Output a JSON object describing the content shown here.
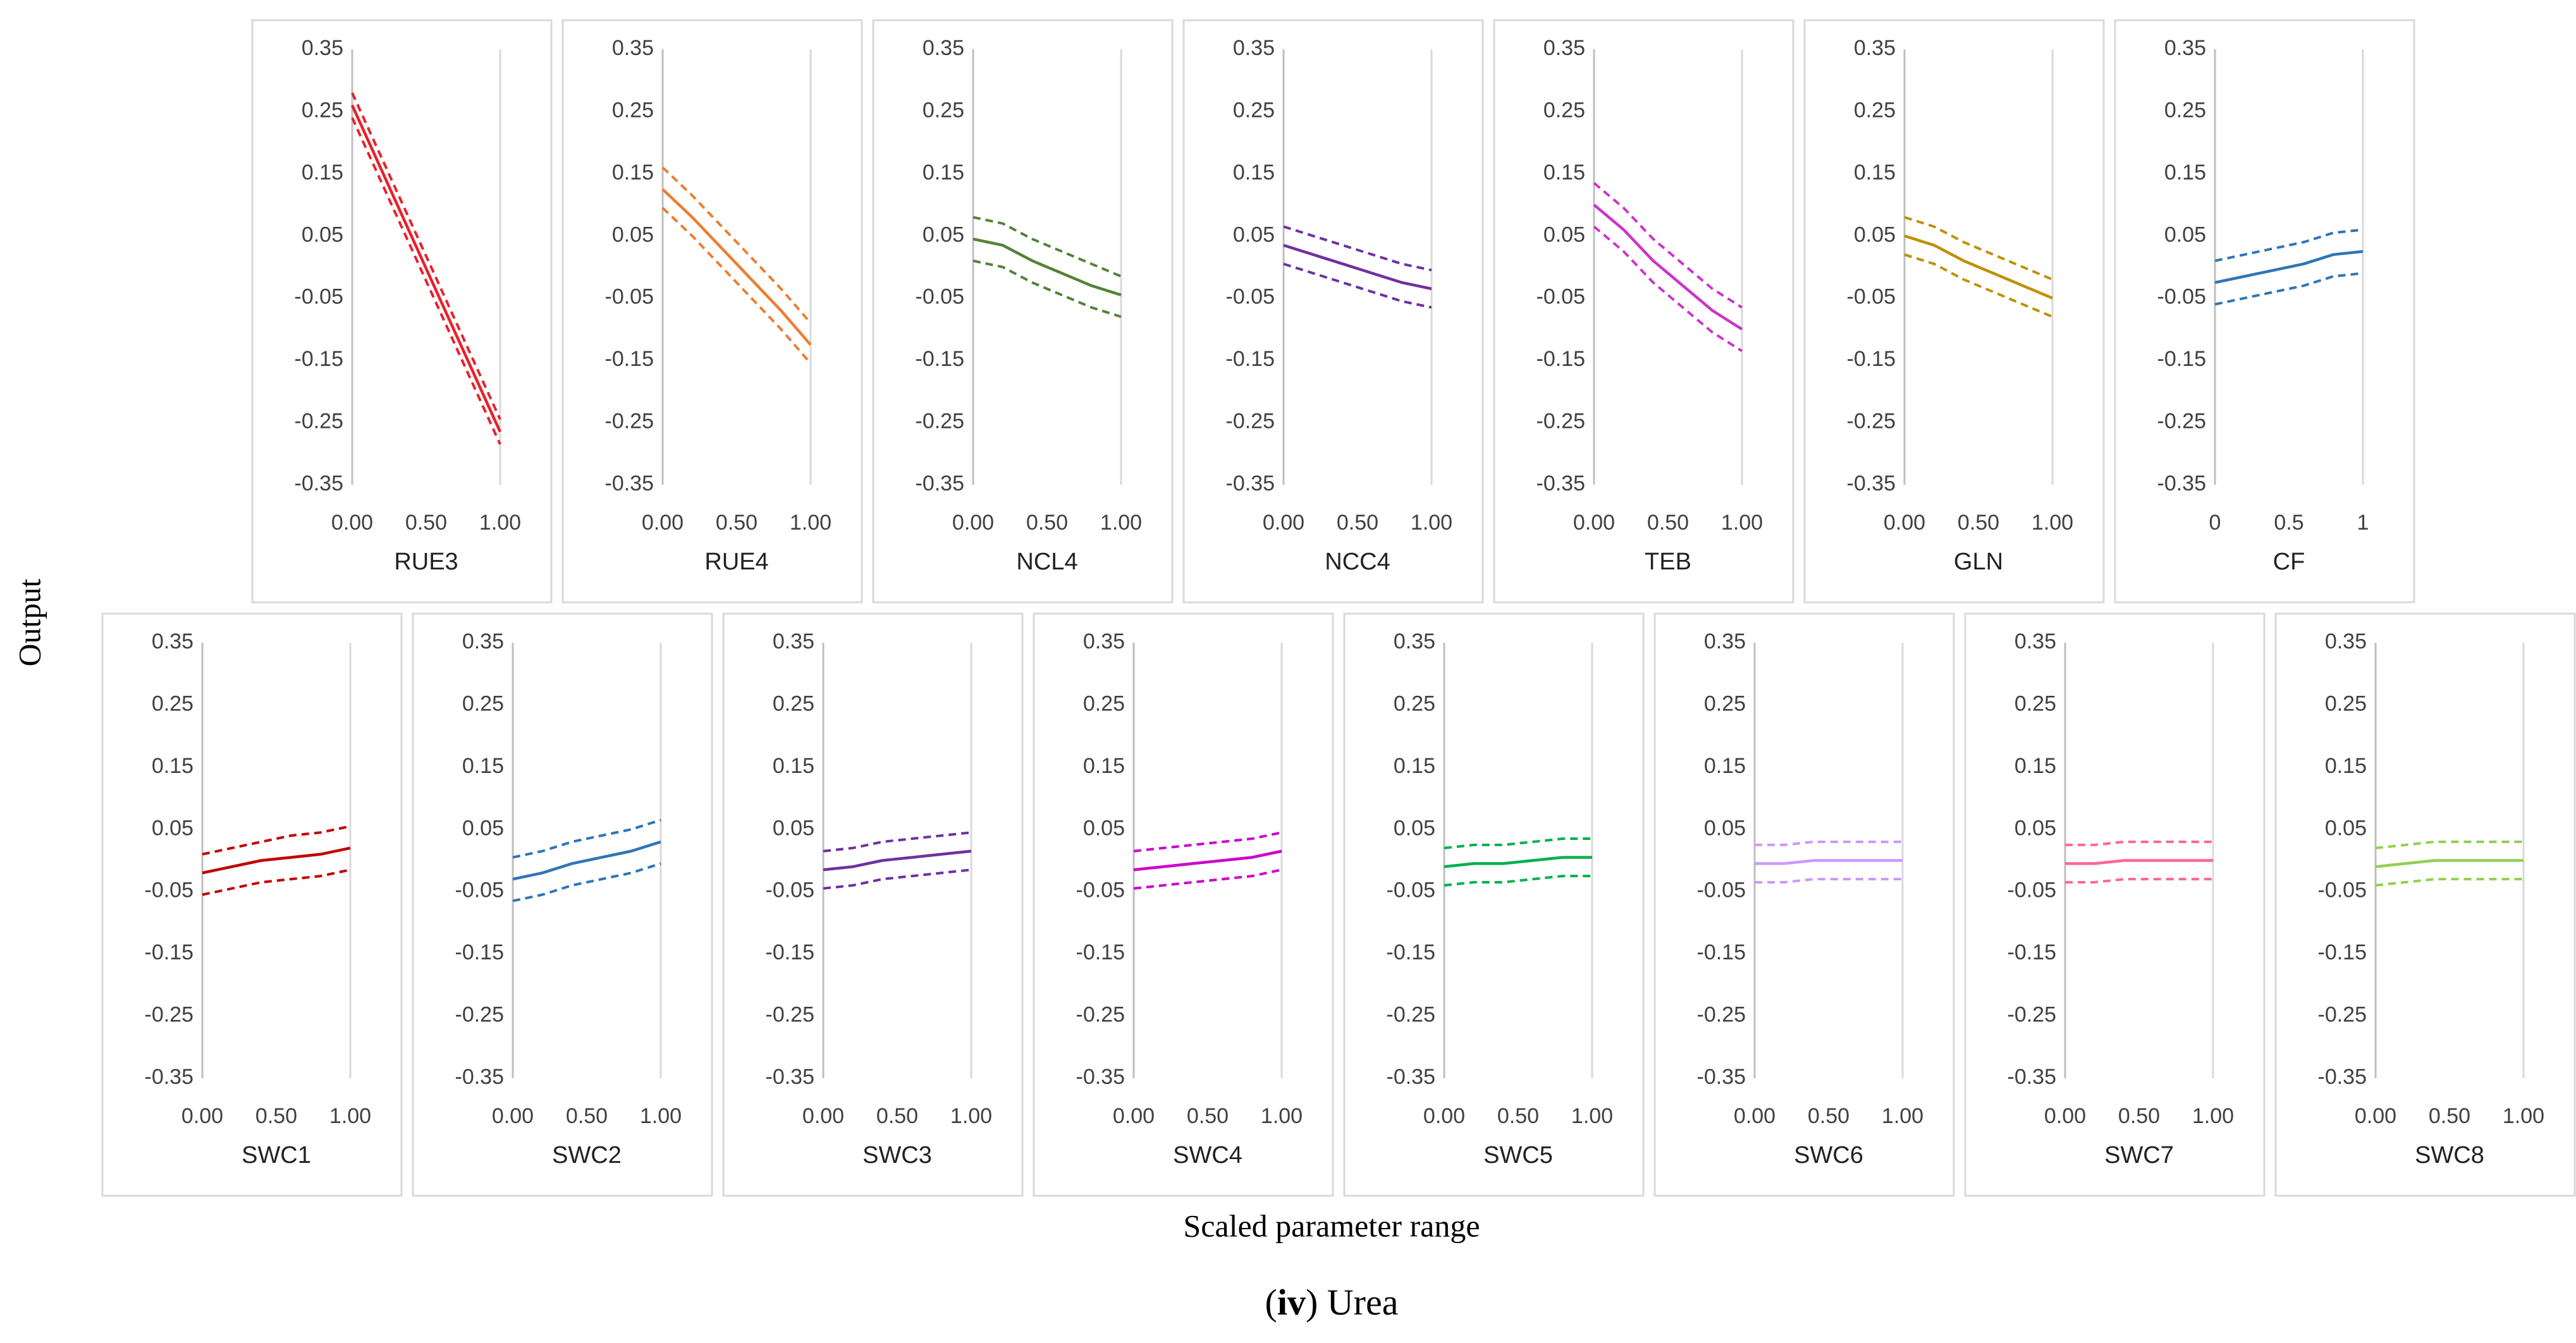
{
  "ylabel": "Output",
  "xlabel": "Scaled parameter range",
  "caption": [
    "(",
    "iv",
    ") Urea"
  ],
  "chart_data": [
    {
      "type": "line",
      "xlabel": "RUE3",
      "x": [
        0,
        0.2,
        0.4,
        0.6,
        0.8,
        1
      ],
      "xlim": [
        0,
        1
      ],
      "xticks": [
        {
          "value": 0,
          "label": "0.00"
        },
        {
          "value": 0.5,
          "label": "0.50"
        },
        {
          "value": 1,
          "label": "1.00"
        }
      ],
      "ylim": [
        -0.35,
        0.35
      ],
      "yticks": [
        0.35,
        0.25,
        0.15,
        0.05,
        -0.05,
        -0.15,
        -0.25,
        -0.35
      ],
      "series": [
        {
          "color": "#e8202a",
          "dashed": false,
          "values": [
            0.26,
            0.155,
            0.05,
            -0.055,
            -0.16,
            -0.265
          ]
        },
        {
          "color": "#e8202a",
          "dashed": true,
          "values": [
            0.28,
            0.175,
            0.07,
            -0.035,
            -0.14,
            -0.245
          ]
        },
        {
          "color": "#e8202a",
          "dashed": true,
          "values": [
            0.24,
            0.135,
            0.03,
            -0.075,
            -0.18,
            -0.285
          ]
        }
      ]
    },
    {
      "type": "line",
      "xlabel": "RUE4",
      "x": [
        0,
        0.2,
        0.4,
        0.6,
        0.8,
        1
      ],
      "xlim": [
        0,
        1
      ],
      "xticks": [
        {
          "value": 0,
          "label": "0.00"
        },
        {
          "value": 0.5,
          "label": "0.50"
        },
        {
          "value": 1,
          "label": "1.00"
        }
      ],
      "ylim": [
        -0.35,
        0.35
      ],
      "yticks": [
        0.35,
        0.25,
        0.15,
        0.05,
        -0.05,
        -0.15,
        -0.25,
        -0.35
      ],
      "series": [
        {
          "color": "#ed7d31",
          "dashed": false,
          "values": [
            0.125,
            0.08,
            0.03,
            -0.02,
            -0.07,
            -0.125
          ]
        },
        {
          "color": "#ed7d31",
          "dashed": true,
          "values": [
            0.16,
            0.115,
            0.065,
            0.015,
            -0.035,
            -0.09
          ]
        },
        {
          "color": "#ed7d31",
          "dashed": true,
          "values": [
            0.095,
            0.05,
            0,
            -0.05,
            -0.1,
            -0.155
          ]
        }
      ]
    },
    {
      "type": "line",
      "xlabel": "NCL4",
      "x": [
        0,
        0.2,
        0.4,
        0.6,
        0.8,
        1
      ],
      "xlim": [
        0,
        1
      ],
      "xticks": [
        {
          "value": 0,
          "label": "0.00"
        },
        {
          "value": 0.5,
          "label": "0.50"
        },
        {
          "value": 1,
          "label": "1.00"
        }
      ],
      "ylim": [
        -0.35,
        0.35
      ],
      "yticks": [
        0.35,
        0.25,
        0.15,
        0.05,
        -0.05,
        -0.15,
        -0.25,
        -0.35
      ],
      "series": [
        {
          "color": "#548235",
          "dashed": false,
          "values": [
            0.045,
            0.035,
            0.01,
            -0.01,
            -0.03,
            -0.045
          ]
        },
        {
          "color": "#548235",
          "dashed": true,
          "values": [
            0.08,
            0.07,
            0.045,
            0.025,
            0.005,
            -0.015
          ]
        },
        {
          "color": "#548235",
          "dashed": true,
          "values": [
            0.01,
            0,
            -0.025,
            -0.045,
            -0.065,
            -0.08
          ]
        }
      ]
    },
    {
      "type": "line",
      "xlabel": "NCC4",
      "x": [
        0,
        0.2,
        0.4,
        0.6,
        0.8,
        1
      ],
      "xlim": [
        0,
        1
      ],
      "xticks": [
        {
          "value": 0,
          "label": "0.00"
        },
        {
          "value": 0.5,
          "label": "0.50"
        },
        {
          "value": 1,
          "label": "1.00"
        }
      ],
      "ylim": [
        -0.35,
        0.35
      ],
      "yticks": [
        0.35,
        0.25,
        0.15,
        0.05,
        -0.05,
        -0.15,
        -0.25,
        -0.35
      ],
      "series": [
        {
          "color": "#7030a0",
          "dashed": false,
          "values": [
            0.035,
            0.02,
            0.005,
            -0.01,
            -0.025,
            -0.035
          ]
        },
        {
          "color": "#7030a0",
          "dashed": true,
          "values": [
            0.065,
            0.05,
            0.035,
            0.02,
            0.005,
            -0.005
          ]
        },
        {
          "color": "#7030a0",
          "dashed": true,
          "values": [
            0.005,
            -0.01,
            -0.025,
            -0.04,
            -0.055,
            -0.065
          ]
        }
      ]
    },
    {
      "type": "line",
      "xlabel": "TEB",
      "x": [
        0,
        0.2,
        0.4,
        0.6,
        0.8,
        1
      ],
      "xlim": [
        0,
        1
      ],
      "xticks": [
        {
          "value": 0,
          "label": "0.00"
        },
        {
          "value": 0.5,
          "label": "0.50"
        },
        {
          "value": 1,
          "label": "1.00"
        }
      ],
      "ylim": [
        -0.35,
        0.35
      ],
      "yticks": [
        0.35,
        0.25,
        0.15,
        0.05,
        -0.05,
        -0.15,
        -0.25,
        -0.35
      ],
      "series": [
        {
          "color": "#cc33cc",
          "dashed": false,
          "values": [
            0.1,
            0.06,
            0.01,
            -0.03,
            -0.07,
            -0.1
          ]
        },
        {
          "color": "#cc33cc",
          "dashed": true,
          "values": [
            0.135,
            0.095,
            0.045,
            0.005,
            -0.035,
            -0.065
          ]
        },
        {
          "color": "#cc33cc",
          "dashed": true,
          "values": [
            0.065,
            0.025,
            -0.025,
            -0.065,
            -0.105,
            -0.135
          ]
        }
      ]
    },
    {
      "type": "line",
      "xlabel": "GLN",
      "x": [
        0,
        0.2,
        0.4,
        0.6,
        0.8,
        1
      ],
      "xlim": [
        0,
        1
      ],
      "xticks": [
        {
          "value": 0,
          "label": "0.00"
        },
        {
          "value": 0.5,
          "label": "0.50"
        },
        {
          "value": 1,
          "label": "1.00"
        }
      ],
      "ylim": [
        -0.35,
        0.35
      ],
      "yticks": [
        0.35,
        0.25,
        0.15,
        0.05,
        -0.05,
        -0.15,
        -0.25,
        -0.35
      ],
      "series": [
        {
          "color": "#bf9000",
          "dashed": false,
          "values": [
            0.05,
            0.035,
            0.01,
            -0.01,
            -0.03,
            -0.05
          ]
        },
        {
          "color": "#bf9000",
          "dashed": true,
          "values": [
            0.08,
            0.065,
            0.04,
            0.02,
            0,
            -0.02
          ]
        },
        {
          "color": "#bf9000",
          "dashed": true,
          "values": [
            0.02,
            0.005,
            -0.02,
            -0.04,
            -0.06,
            -0.08
          ]
        }
      ]
    },
    {
      "type": "line",
      "xlabel": "CF",
      "x": [
        0,
        0.2,
        0.4,
        0.6,
        0.8,
        1
      ],
      "xlim": [
        0,
        1
      ],
      "xticks": [
        0,
        0.5,
        1
      ],
      "ylim": [
        -0.35,
        0.35
      ],
      "yticks": [
        0.35,
        0.25,
        0.15,
        0.05,
        -0.05,
        -0.15,
        -0.25,
        -0.35
      ],
      "series": [
        {
          "color": "#2e75b6",
          "dashed": false,
          "values": [
            -0.025,
            -0.015,
            -0.005,
            0.005,
            0.02,
            0.025
          ]
        },
        {
          "color": "#2e75b6",
          "dashed": true,
          "values": [
            0.01,
            0.02,
            0.03,
            0.04,
            0.055,
            0.06
          ]
        },
        {
          "color": "#2e75b6",
          "dashed": true,
          "values": [
            -0.06,
            -0.05,
            -0.04,
            -0.03,
            -0.015,
            -0.01
          ]
        }
      ]
    },
    {
      "type": "line",
      "xlabel": "SWC1",
      "x": [
        0,
        0.2,
        0.4,
        0.6,
        0.8,
        1
      ],
      "xlim": [
        0,
        1
      ],
      "xticks": [
        {
          "value": 0,
          "label": "0.00"
        },
        {
          "value": 0.5,
          "label": "0.50"
        },
        {
          "value": 1,
          "label": "1.00"
        }
      ],
      "ylim": [
        -0.35,
        0.35
      ],
      "yticks": [
        0.35,
        0.25,
        0.15,
        0.05,
        -0.05,
        -0.15,
        -0.25,
        -0.35
      ],
      "series": [
        {
          "color": "#c00000",
          "dashed": false,
          "values": [
            -0.02,
            -0.01,
            0,
            0.005,
            0.01,
            0.02
          ]
        },
        {
          "color": "#c00000",
          "dashed": true,
          "values": [
            0.01,
            0.02,
            0.03,
            0.04,
            0.045,
            0.055
          ]
        },
        {
          "color": "#c00000",
          "dashed": true,
          "values": [
            -0.055,
            -0.045,
            -0.035,
            -0.03,
            -0.025,
            -0.015
          ]
        }
      ]
    },
    {
      "type": "line",
      "xlabel": "SWC2",
      "x": [
        0,
        0.2,
        0.4,
        0.6,
        0.8,
        1
      ],
      "xlim": [
        0,
        1
      ],
      "xticks": [
        {
          "value": 0,
          "label": "0.00"
        },
        {
          "value": 0.5,
          "label": "0.50"
        },
        {
          "value": 1,
          "label": "1.00"
        }
      ],
      "ylim": [
        -0.35,
        0.35
      ],
      "yticks": [
        0.35,
        0.25,
        0.15,
        0.05,
        -0.05,
        -0.15,
        -0.25,
        -0.35
      ],
      "series": [
        {
          "color": "#2e75b6",
          "dashed": false,
          "values": [
            -0.03,
            -0.02,
            -0.005,
            0.005,
            0.015,
            0.03
          ]
        },
        {
          "color": "#2e75b6",
          "dashed": true,
          "values": [
            0.005,
            0.015,
            0.03,
            0.04,
            0.05,
            0.065
          ]
        },
        {
          "color": "#2e75b6",
          "dashed": true,
          "values": [
            -0.065,
            -0.055,
            -0.04,
            -0.03,
            -0.02,
            -0.005
          ]
        }
      ]
    },
    {
      "type": "line",
      "xlabel": "SWC3",
      "x": [
        0,
        0.2,
        0.4,
        0.6,
        0.8,
        1
      ],
      "xlim": [
        0,
        1
      ],
      "xticks": [
        {
          "value": 0,
          "label": "0.00"
        },
        {
          "value": 0.5,
          "label": "0.50"
        },
        {
          "value": 1,
          "label": "1.00"
        }
      ],
      "ylim": [
        -0.35,
        0.35
      ],
      "yticks": [
        0.35,
        0.25,
        0.15,
        0.05,
        -0.05,
        -0.15,
        -0.25,
        -0.35
      ],
      "series": [
        {
          "color": "#7030a0",
          "dashed": false,
          "values": [
            -0.015,
            -0.01,
            0,
            0.005,
            0.01,
            0.015
          ]
        },
        {
          "color": "#7030a0",
          "dashed": true,
          "values": [
            0.015,
            0.02,
            0.03,
            0.035,
            0.04,
            0.045
          ]
        },
        {
          "color": "#7030a0",
          "dashed": true,
          "values": [
            -0.045,
            -0.04,
            -0.03,
            -0.025,
            -0.02,
            -0.015
          ]
        }
      ]
    },
    {
      "type": "line",
      "xlabel": "SWC4",
      "x": [
        0,
        0.2,
        0.4,
        0.6,
        0.8,
        1
      ],
      "xlim": [
        0,
        1
      ],
      "xticks": [
        {
          "value": 0,
          "label": "0.00"
        },
        {
          "value": 0.5,
          "label": "0.50"
        },
        {
          "value": 1,
          "label": "1.00"
        }
      ],
      "ylim": [
        -0.35,
        0.35
      ],
      "yticks": [
        0.35,
        0.25,
        0.15,
        0.05,
        -0.05,
        -0.15,
        -0.25,
        -0.35
      ],
      "series": [
        {
          "color": "#cc00cc",
          "dashed": false,
          "values": [
            -0.015,
            -0.01,
            -0.005,
            0,
            0.005,
            0.015
          ]
        },
        {
          "color": "#cc00cc",
          "dashed": true,
          "values": [
            0.015,
            0.02,
            0.025,
            0.03,
            0.035,
            0.045
          ]
        },
        {
          "color": "#cc00cc",
          "dashed": true,
          "values": [
            -0.045,
            -0.04,
            -0.035,
            -0.03,
            -0.025,
            -0.015
          ]
        }
      ]
    },
    {
      "type": "line",
      "xlabel": "SWC5",
      "x": [
        0,
        0.2,
        0.4,
        0.6,
        0.8,
        1
      ],
      "xlim": [
        0,
        1
      ],
      "xticks": [
        {
          "value": 0,
          "label": "0.00"
        },
        {
          "value": 0.5,
          "label": "0.50"
        },
        {
          "value": 1,
          "label": "1.00"
        }
      ],
      "ylim": [
        -0.35,
        0.35
      ],
      "yticks": [
        0.35,
        0.25,
        0.15,
        0.05,
        -0.05,
        -0.15,
        -0.25,
        -0.35
      ],
      "series": [
        {
          "color": "#00b050",
          "dashed": false,
          "values": [
            -0.01,
            -0.005,
            -0.005,
            0,
            0.005,
            0.005
          ]
        },
        {
          "color": "#00b050",
          "dashed": true,
          "values": [
            0.02,
            0.025,
            0.025,
            0.03,
            0.035,
            0.035
          ]
        },
        {
          "color": "#00b050",
          "dashed": true,
          "values": [
            -0.04,
            -0.035,
            -0.035,
            -0.03,
            -0.025,
            -0.025
          ]
        }
      ]
    },
    {
      "type": "line",
      "xlabel": "SWC6",
      "x": [
        0,
        0.2,
        0.4,
        0.6,
        0.8,
        1
      ],
      "xlim": [
        0,
        1
      ],
      "xticks": [
        {
          "value": 0,
          "label": "0.00"
        },
        {
          "value": 0.5,
          "label": "0.50"
        },
        {
          "value": 1,
          "label": "1.00"
        }
      ],
      "ylim": [
        -0.35,
        0.35
      ],
      "yticks": [
        0.35,
        0.25,
        0.15,
        0.05,
        -0.05,
        -0.15,
        -0.25,
        -0.35
      ],
      "series": [
        {
          "color": "#cc99ff",
          "dashed": false,
          "values": [
            -0.005,
            -0.005,
            0,
            0,
            0,
            0
          ]
        },
        {
          "color": "#cc99ff",
          "dashed": true,
          "values": [
            0.025,
            0.025,
            0.03,
            0.03,
            0.03,
            0.03
          ]
        },
        {
          "color": "#cc99ff",
          "dashed": true,
          "values": [
            -0.035,
            -0.035,
            -0.03,
            -0.03,
            -0.03,
            -0.03
          ]
        }
      ]
    },
    {
      "type": "line",
      "xlabel": "SWC7",
      "x": [
        0,
        0.2,
        0.4,
        0.6,
        0.8,
        1
      ],
      "xlim": [
        0,
        1
      ],
      "xticks": [
        {
          "value": 0,
          "label": "0.00"
        },
        {
          "value": 0.5,
          "label": "0.50"
        },
        {
          "value": 1,
          "label": "1.00"
        }
      ],
      "ylim": [
        -0.35,
        0.35
      ],
      "yticks": [
        0.35,
        0.25,
        0.15,
        0.05,
        -0.05,
        -0.15,
        -0.25,
        -0.35
      ],
      "series": [
        {
          "color": "#ff6699",
          "dashed": false,
          "values": [
            -0.005,
            -0.005,
            0,
            0,
            0,
            0
          ]
        },
        {
          "color": "#ff6699",
          "dashed": true,
          "values": [
            0.025,
            0.025,
            0.03,
            0.03,
            0.03,
            0.03
          ]
        },
        {
          "color": "#ff6699",
          "dashed": true,
          "values": [
            -0.035,
            -0.035,
            -0.03,
            -0.03,
            -0.03,
            -0.03
          ]
        }
      ]
    },
    {
      "type": "line",
      "xlabel": "SWC8",
      "x": [
        0,
        0.2,
        0.4,
        0.6,
        0.8,
        1
      ],
      "xlim": [
        0,
        1
      ],
      "xticks": [
        {
          "value": 0,
          "label": "0.00"
        },
        {
          "value": 0.5,
          "label": "0.50"
        },
        {
          "value": 1,
          "label": "1.00"
        }
      ],
      "ylim": [
        -0.35,
        0.35
      ],
      "yticks": [
        0.35,
        0.25,
        0.15,
        0.05,
        -0.05,
        -0.15,
        -0.25,
        -0.35
      ],
      "series": [
        {
          "color": "#92d050",
          "dashed": false,
          "values": [
            -0.01,
            -0.005,
            0,
            0,
            0,
            0
          ]
        },
        {
          "color": "#92d050",
          "dashed": true,
          "values": [
            0.02,
            0.025,
            0.03,
            0.03,
            0.03,
            0.03
          ]
        },
        {
          "color": "#92d050",
          "dashed": true,
          "values": [
            -0.04,
            -0.035,
            -0.03,
            -0.03,
            -0.03,
            -0.03
          ]
        }
      ]
    }
  ]
}
